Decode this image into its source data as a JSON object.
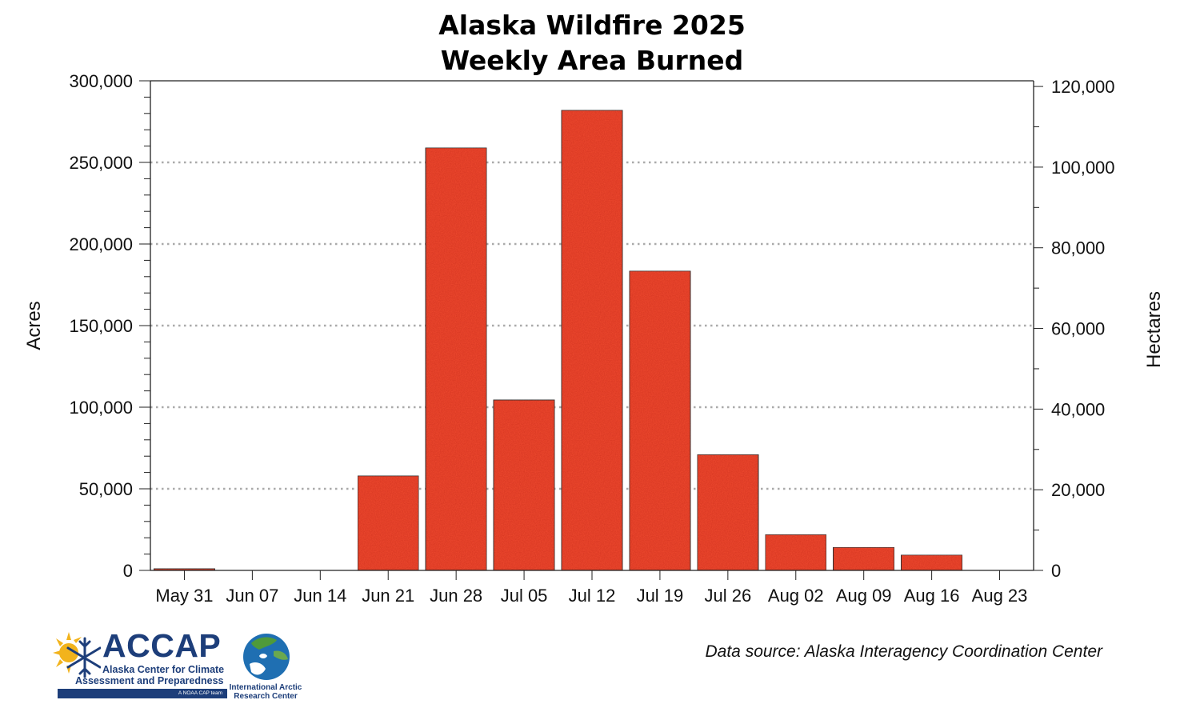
{
  "chart_data": {
    "type": "bar",
    "title": "Alaska Wildfire 2025",
    "subtitle": "Weekly Area Burned",
    "categories": [
      "May 31",
      "Jun 07",
      "Jun 14",
      "Jun 21",
      "Jun 28",
      "Jul 05",
      "Jul 12",
      "Jul 19",
      "Jul 26",
      "Aug 02",
      "Aug 09",
      "Aug 16",
      "Aug 23"
    ],
    "values": [
      1100,
      0,
      0,
      58000,
      259000,
      104500,
      282000,
      183500,
      71000,
      22000,
      14200,
      9500,
      200
    ],
    "ylabel": "Acres",
    "ylabel_right": "Hectares",
    "ylim": [
      0,
      300000
    ],
    "ylim_right": [
      0,
      121406
    ],
    "yticks": [
      0,
      50000,
      100000,
      150000,
      200000,
      250000,
      300000
    ],
    "ytick_labels": [
      "0",
      "50,000",
      "100,000",
      "150,000",
      "200,000",
      "250,000",
      "300,000"
    ],
    "yticks_right": [
      0,
      20000,
      40000,
      60000,
      80000,
      100000,
      120000
    ],
    "ytick_labels_right": [
      "0",
      "20,000",
      "40,000",
      "60,000",
      "80,000",
      "100,000",
      "120,000"
    ],
    "grid": "horizontal dotted",
    "bar_color": "#f04a30",
    "legend": "none"
  },
  "footer": {
    "source_note": "Data source: Alaska Interagency Coordination Center",
    "accap_logo_text": "ACCAP",
    "accap_logo_line1": "Alaska Center for Climate",
    "accap_logo_line2": "Assessment and Preparedness",
    "accap_logo_tag": "A NOAA CAP team",
    "iarc_logo_text": "International Arctic Research Center",
    "brand_color": "#1d3e7a"
  }
}
